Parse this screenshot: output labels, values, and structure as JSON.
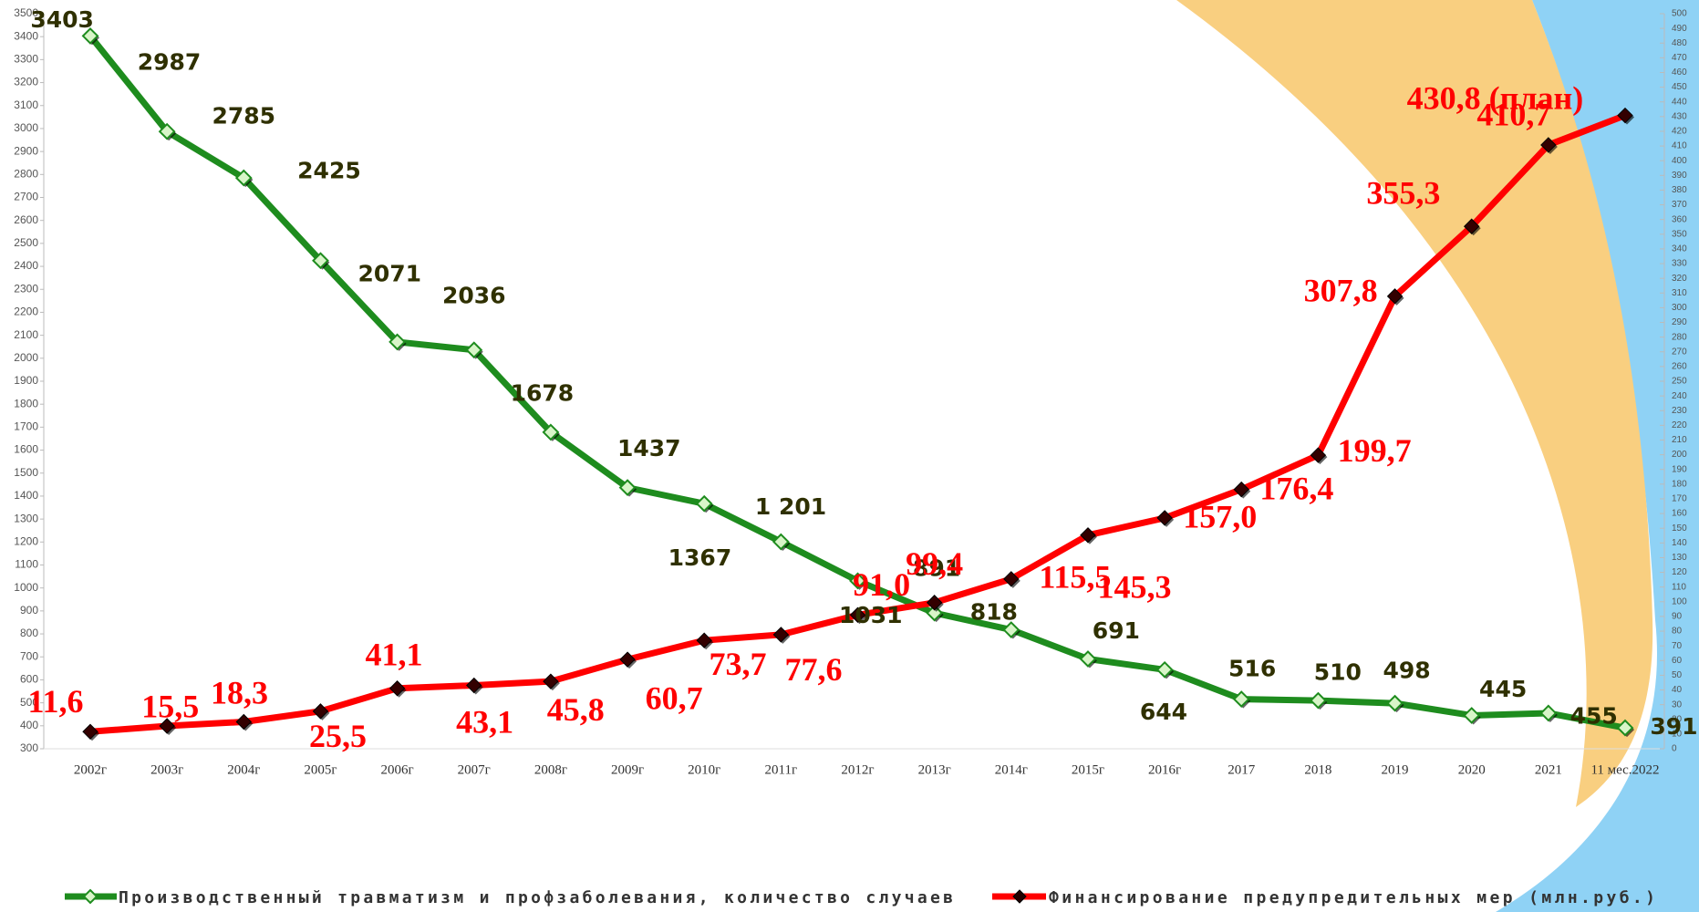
{
  "chart_data": {
    "type": "line",
    "categories": [
      "2002г",
      "2003г",
      "2004г",
      "2005г",
      "2006г",
      "2007г",
      "2008г",
      "2009г",
      "2010г",
      "2011г",
      "2012г",
      "2013г",
      "2014г",
      "2015г",
      "2016г",
      "2017",
      "2018",
      "2019",
      "2020",
      "2021",
      "11 мес.2022"
    ],
    "series": [
      {
        "name": "Производственный травматизм и профзаболевания, количество случаев",
        "color": "#1e8c1e",
        "values": [
          3403,
          2987,
          2785,
          2425,
          2071,
          2036,
          1678,
          1437,
          1367,
          1201,
          1031,
          891,
          818,
          691,
          644,
          516,
          510,
          498,
          445,
          455,
          391
        ],
        "value_labels": [
          "3403",
          "2987",
          "2785",
          "2425",
          "2071",
          "2036",
          "1678",
          "1437",
          "1367",
          "1 201",
          "1031",
          "891",
          "818",
          "691",
          "644",
          "516",
          "510",
          "498",
          "445",
          "455",
          "391"
        ]
      },
      {
        "name": "Финансирование предупредительных мер (млн.руб.)",
        "color": "#ff0000",
        "axis": "y2",
        "values": [
          11.6,
          15.5,
          18.3,
          25.5,
          41.1,
          43.1,
          45.8,
          60.7,
          73.7,
          77.6,
          91.0,
          99.4,
          115.5,
          145.3,
          157.0,
          176.4,
          199.7,
          307.8,
          355.3,
          410.7,
          430.8
        ],
        "value_labels": [
          "11,6",
          "15,5",
          "18,3",
          "25,5",
          "41,1",
          "43,1",
          "45,8",
          "60,7",
          "73,7",
          "77,6",
          "91,0",
          "99,4",
          "115,5",
          "145,3",
          "157,0",
          "176,4",
          "199,7",
          "307,8",
          "355,3",
          "410,7",
          "430,8 (план)"
        ]
      }
    ],
    "ylim": [
      300,
      3500
    ],
    "yticks": [
      300,
      400,
      500,
      600,
      700,
      800,
      900,
      1000,
      1100,
      1200,
      1300,
      1400,
      1500,
      1600,
      1700,
      1800,
      1900,
      2000,
      2100,
      2200,
      2300,
      2400,
      2500,
      2600,
      2700,
      2800,
      2900,
      3000,
      3100,
      3200,
      3300,
      3400,
      3500
    ],
    "y2lim": [
      0,
      500
    ],
    "y2ticks": [
      0,
      10,
      20,
      30,
      40,
      50,
      60,
      70,
      80,
      90,
      100,
      110,
      120,
      130,
      140,
      150,
      160,
      170,
      180,
      190,
      200,
      210,
      220,
      230,
      240,
      250,
      260,
      270,
      280,
      290,
      300,
      310,
      320,
      330,
      340,
      350,
      360,
      370,
      380,
      390,
      400,
      410,
      420,
      430,
      440,
      450,
      460,
      470,
      480,
      490,
      500
    ],
    "grid": false,
    "legend": "bottom"
  }
}
